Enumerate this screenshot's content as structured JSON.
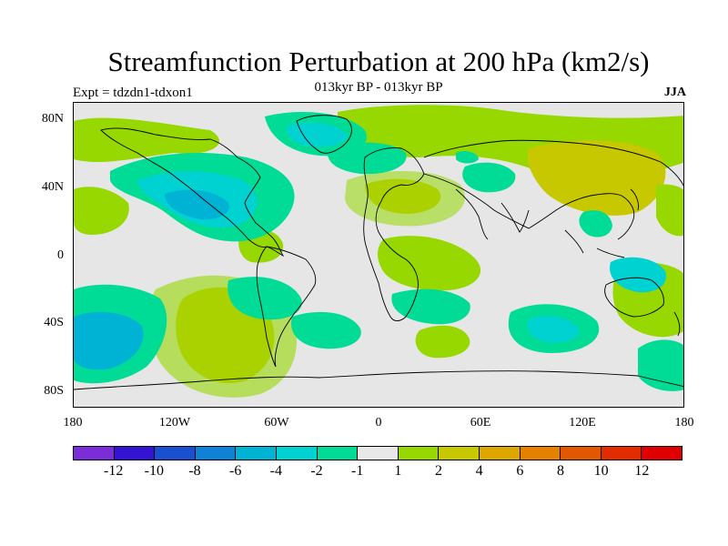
{
  "title": "Streamfunction Perturbation at 200 hPa (km2/s)",
  "subtitle": "013kyr BP - 013kyr BP",
  "experiment_label": "Expt = tdzdn1-tdxon1",
  "season": "JJA",
  "lat_ticks": [
    "80N",
    "40N",
    "0",
    "40S",
    "80S"
  ],
  "lon_ticks": [
    "180",
    "120W",
    "60W",
    "0",
    "60E",
    "120E",
    "180"
  ],
  "colorbar": {
    "colors": [
      "#7b2ed8",
      "#3414d2",
      "#1a4fcf",
      "#0f82d6",
      "#00b3d4",
      "#00d2d2",
      "#00dc96",
      "#e8e8e8",
      "#96d800",
      "#c8c800",
      "#dca800",
      "#e48200",
      "#e05800",
      "#e22c00",
      "#e00000"
    ],
    "labels": [
      "-12",
      "-10",
      "-8",
      "-6",
      "-4",
      "-2",
      "-1",
      "1",
      "2",
      "4",
      "6",
      "8",
      "10",
      "12"
    ]
  }
}
